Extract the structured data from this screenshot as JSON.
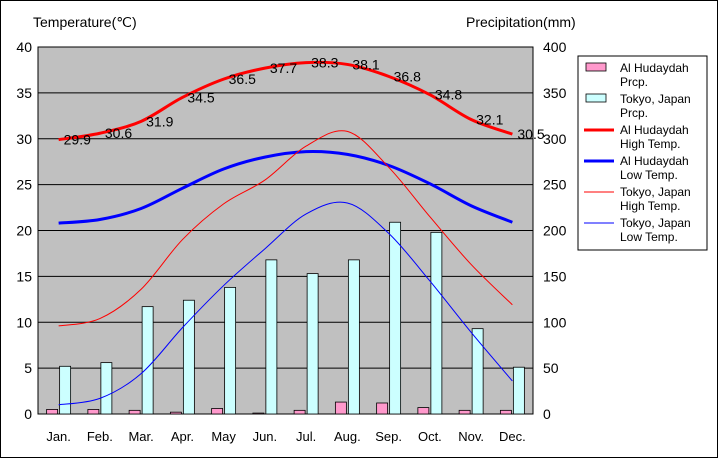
{
  "chart_data": {
    "type": "bar+line",
    "left_axis_title": "Temperature(℃)",
    "right_axis_title": "Precipitation(mm)",
    "categories": [
      "Jan.",
      "Feb.",
      "Mar.",
      "Apr.",
      "May",
      "Jun.",
      "Jul.",
      "Aug.",
      "Sep.",
      "Oct.",
      "Nov.",
      "Dec."
    ],
    "y_left": {
      "min": 0,
      "max": 40,
      "step": 5
    },
    "y_right": {
      "min": 0,
      "max": 400,
      "step": 50
    },
    "grid": true,
    "legend_position": "right",
    "bar_series": [
      {
        "name": "Al Hudaydah Prcp.",
        "color": "#ff99cc",
        "values": [
          5,
          5,
          4,
          2,
          6,
          1,
          4,
          13,
          12,
          7,
          4,
          4
        ]
      },
      {
        "name": "Tokyo, Japan Prcp.",
        "color": "#ccffff",
        "values": [
          52,
          56,
          117,
          124,
          138,
          168,
          153,
          168,
          209,
          198,
          93,
          51
        ]
      }
    ],
    "line_series": [
      {
        "name": "Al Hudaydah High Temp.",
        "color": "#ff0000",
        "width": 3,
        "values": [
          29.9,
          30.6,
          31.9,
          34.5,
          36.5,
          37.7,
          38.3,
          38.1,
          36.8,
          34.8,
          32.1,
          30.5
        ],
        "labels": [
          "29.9",
          "30.6",
          "31.9",
          "34.5",
          "36.5",
          "37.7",
          "38.3",
          "38.1",
          "36.8",
          "34.8",
          "32.1",
          "30.5"
        ]
      },
      {
        "name": "Al Hudaydah Low Temp.",
        "color": "#0000ff",
        "width": 3,
        "values": [
          20.8,
          21.2,
          22.4,
          24.6,
          26.7,
          28.0,
          28.6,
          28.3,
          27.1,
          25.1,
          22.7,
          20.9
        ]
      },
      {
        "name": "Tokyo, Japan High Temp.",
        "color": "#ff0000",
        "width": 1,
        "values": [
          9.6,
          10.4,
          13.6,
          19.0,
          22.9,
          25.5,
          29.2,
          30.8,
          26.9,
          21.5,
          16.3,
          11.9
        ]
      },
      {
        "name": "Tokyo, Japan Low Temp.",
        "color": "#0000ff",
        "width": 1,
        "values": [
          1.0,
          1.7,
          4.4,
          9.4,
          14.0,
          18.0,
          21.8,
          23.0,
          19.7,
          14.5,
          8.9,
          3.6
        ]
      }
    ],
    "legend": [
      {
        "line1": "Al Hudaydah",
        "line2": "Prcp."
      },
      {
        "line1": "Tokyo, Japan",
        "line2": "Prcp."
      },
      {
        "line1": "Al Hudaydah",
        "line2": "High Temp."
      },
      {
        "line1": "Al Hudaydah",
        "line2": "Low Temp."
      },
      {
        "line1": "Tokyo, Japan",
        "line2": "High Temp."
      },
      {
        "line1": "Tokyo, Japan",
        "line2": "Low Temp."
      }
    ]
  }
}
